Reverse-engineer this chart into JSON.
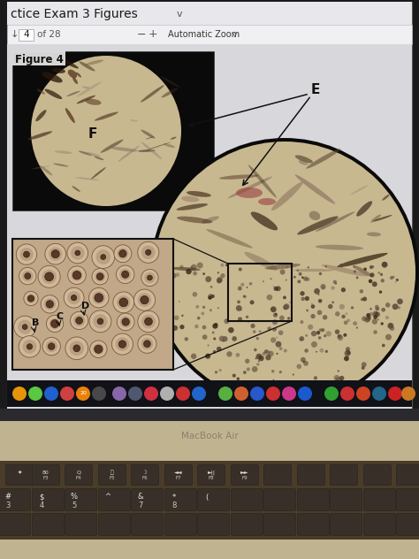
{
  "fig_w": 4.74,
  "fig_h": 6.32,
  "dpi": 100,
  "laptop_bezel_color": "#1a1a1a",
  "screen_bg": "#e0e0e4",
  "toolbar_bg": "#e8e8ec",
  "navbar_bg": "#f0f0f2",
  "content_bg": "#d8d8dc",
  "title_text": "ctice Exam 3 Figures",
  "title_arrow": "v",
  "nav_text": "4  of 28",
  "nav_minus": "−",
  "nav_plus": "+",
  "nav_zoom": "Automatic Zoom",
  "nav_arrow": "v",
  "figure_label": "Figure 4",
  "label_E": "E",
  "label_F": "F",
  "label_B": "B",
  "label_C": "C",
  "label_D": "D",
  "upper_img_bg": "#0a0a0a",
  "upper_circle_color": "#c8b89a",
  "tissue_tan": "#c0aa8a",
  "tissue_dark": "#604838",
  "tissue_mid": "#907060",
  "tissue_light": "#d8c8a8",
  "large_circle_border": "#0a0a0a",
  "large_circle_fill": "#c4b490",
  "inset_bg": "#c0a888",
  "inset_border": "#111111",
  "cell_outer": "#c8b090",
  "cell_inner": "#5a3828",
  "rect_color": "#111111",
  "line_color": "#111111",
  "arrow_color": "#111111",
  "dock_bg": "#1a1a20",
  "hinge_bg": "#2a2a2e",
  "keyboard_bg": "#c8bc9a",
  "keyboard_palm": "#c4b890",
  "key_color": "#383028",
  "key_text": "#e8e8e8",
  "macbook_text": "MacBook Air",
  "macbook_text_color": "#888070"
}
